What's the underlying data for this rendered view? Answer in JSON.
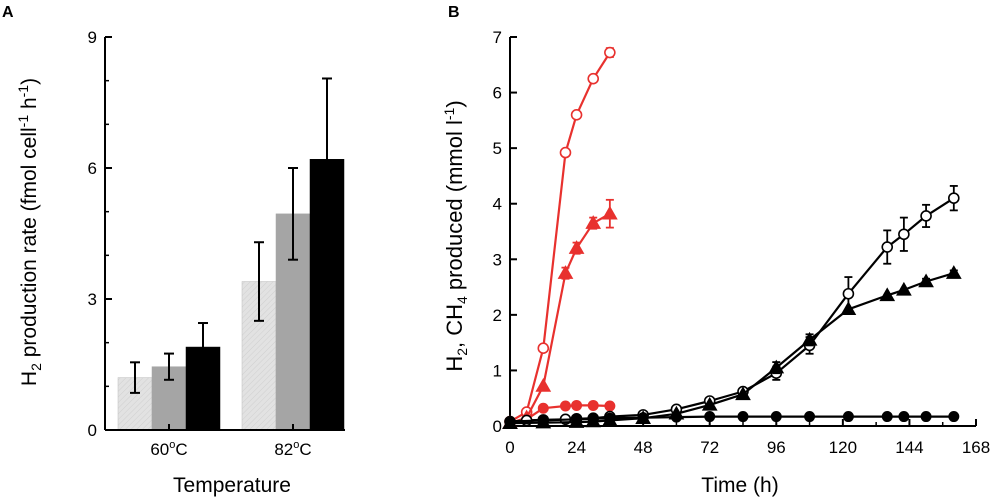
{
  "chart_data": [
    {
      "panel": "A",
      "type": "bar",
      "xlabel": "Temperature",
      "ylabel": {
        "text": "production rate (fmol cell",
        "species": "H",
        "species_sub": "2",
        "unit_mid": " h",
        "sup1": "-1",
        "sup2": "-1",
        "close": ")"
      },
      "ylim": [
        0,
        9
      ],
      "yticks": [
        0,
        3,
        6,
        9
      ],
      "groups": [
        {
          "label_main": "60",
          "label_sup": "o",
          "label_unit": "C"
        },
        {
          "label_main": "82",
          "label_sup": "o",
          "label_unit": "C"
        }
      ],
      "series": [
        {
          "name": "light",
          "color": "#e2e2e2",
          "values": [
            1.2,
            3.4
          ],
          "errors": [
            0.35,
            0.9
          ]
        },
        {
          "name": "medium",
          "color": "#a5a5a5",
          "values": [
            1.45,
            4.95
          ],
          "errors": [
            0.3,
            1.05
          ]
        },
        {
          "name": "dark",
          "color": "#000000",
          "values": [
            1.9,
            6.2
          ],
          "errors": [
            0.55,
            1.85
          ]
        }
      ]
    },
    {
      "panel": "B",
      "type": "line",
      "xlabel": "Time (h)",
      "ylabel": {
        "h": "H",
        "h_sub": "2",
        "mid": ", CH",
        "ch_sub": "4",
        "rest": " produced (mmol l",
        "sup": "-1",
        "close": ")"
      },
      "xlim": [
        0,
        168
      ],
      "ylim": [
        0,
        7
      ],
      "xticks": [
        0,
        24,
        48,
        72,
        96,
        120,
        144,
        168
      ],
      "yticks": [
        0,
        1,
        2,
        3,
        4,
        5,
        6,
        7
      ],
      "series": [
        {
          "name": "red-open-circle",
          "color": "#e8312e",
          "marker": "open-circle",
          "x": [
            0,
            6,
            12,
            20,
            24,
            30,
            36
          ],
          "y": [
            0.08,
            0.25,
            1.4,
            4.92,
            5.6,
            6.25,
            6.72
          ],
          "err": [
            0,
            0,
            0,
            0,
            0,
            0.05,
            0.08
          ]
        },
        {
          "name": "red-triangle",
          "color": "#e8312e",
          "marker": "triangle",
          "x": [
            0,
            6,
            12,
            20,
            24,
            30,
            36
          ],
          "y": [
            0.05,
            0.15,
            0.72,
            2.75,
            3.2,
            3.65,
            3.82
          ],
          "err": [
            0,
            0,
            0,
            0.1,
            0.1,
            0.1,
            0.25
          ]
        },
        {
          "name": "red-filled-circle",
          "color": "#e8312e",
          "marker": "filled-circle",
          "x": [
            0,
            6,
            12,
            20,
            24,
            30,
            36
          ],
          "y": [
            0.05,
            0.12,
            0.32,
            0.36,
            0.37,
            0.37,
            0.36
          ],
          "err": [
            0,
            0,
            0,
            0,
            0,
            0,
            0
          ]
        },
        {
          "name": "black-open-circle",
          "color": "#000000",
          "marker": "open-circle",
          "x": [
            0,
            6,
            12,
            20,
            24,
            30,
            36,
            48,
            60,
            72,
            84,
            96,
            108,
            122,
            136,
            142,
            150,
            160
          ],
          "y": [
            0.08,
            0.1,
            0.11,
            0.12,
            0.13,
            0.14,
            0.17,
            0.2,
            0.3,
            0.45,
            0.62,
            0.95,
            1.45,
            2.38,
            3.22,
            3.45,
            3.78,
            4.1
          ],
          "err": [
            0,
            0,
            0,
            0,
            0,
            0,
            0,
            0,
            0,
            0,
            0,
            0.12,
            0.15,
            0.3,
            0.3,
            0.3,
            0.2,
            0.22
          ]
        },
        {
          "name": "black-triangle",
          "color": "#000000",
          "marker": "triangle",
          "x": [
            0,
            12,
            24,
            30,
            36,
            48,
            60,
            72,
            84,
            96,
            108,
            122,
            136,
            142,
            150,
            160
          ],
          "y": [
            0.05,
            0.06,
            0.07,
            0.08,
            0.1,
            0.14,
            0.22,
            0.38,
            0.57,
            1.05,
            1.55,
            2.1,
            2.35,
            2.45,
            2.6,
            2.75
          ],
          "err": [
            0,
            0,
            0,
            0,
            0,
            0,
            0,
            0,
            0,
            0.1,
            0.1,
            0,
            0,
            0,
            0.05,
            0.05
          ]
        },
        {
          "name": "black-filled-circle",
          "color": "#000000",
          "marker": "filled-circle",
          "x": [
            0,
            12,
            24,
            30,
            36,
            48,
            60,
            72,
            84,
            96,
            108,
            122,
            136,
            142,
            150,
            160
          ],
          "y": [
            0.08,
            0.1,
            0.12,
            0.13,
            0.14,
            0.15,
            0.16,
            0.17,
            0.17,
            0.17,
            0.17,
            0.17,
            0.17,
            0.17,
            0.17,
            0.17
          ],
          "err": [
            0,
            0,
            0,
            0,
            0,
            0,
            0,
            0,
            0,
            0,
            0,
            0,
            0,
            0,
            0,
            0
          ]
        }
      ]
    }
  ]
}
